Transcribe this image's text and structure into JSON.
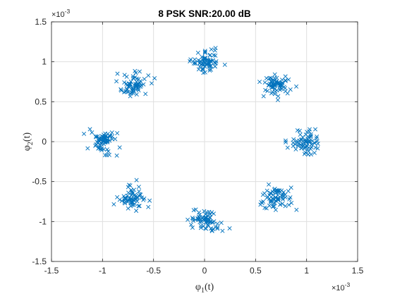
{
  "chart_data": {
    "type": "scatter",
    "title": "8 PSK  SNR:20.00 dB",
    "xlabel": {
      "base": "φ",
      "sub": "1",
      "tail": "(t)"
    },
    "ylabel": {
      "base": "φ",
      "sub": "2",
      "tail": "(t)"
    },
    "x_exponent": {
      "mult": "×10",
      "exp": "-3"
    },
    "y_exponent": {
      "mult": "×10",
      "exp": "-3"
    },
    "xlim": [
      -1.5,
      1.5
    ],
    "ylim": [
      -1.5,
      1.5
    ],
    "xticks": [
      -1.5,
      -1,
      -0.5,
      0,
      0.5,
      1,
      1.5
    ],
    "yticks": [
      -1.5,
      -1,
      -0.5,
      0,
      0.5,
      1,
      1.5
    ],
    "xtick_labels": [
      "-1.5",
      "-1",
      "-0.5",
      "0",
      "0.5",
      "1",
      "1.5"
    ],
    "ytick_labels": [
      "-1.5",
      "-1",
      "-0.5",
      "0",
      "0.5",
      "1",
      "1.5"
    ],
    "grid": true,
    "marker": "x",
    "color": "#0072BD",
    "series": [
      {
        "clusters": [
          {
            "center": [
              1.0,
              0.0
            ],
            "spread": 0.07,
            "count": 70
          },
          {
            "center": [
              0.707,
              0.707
            ],
            "spread": 0.07,
            "count": 70
          },
          {
            "center": [
              0.0,
              1.0
            ],
            "spread": 0.07,
            "count": 70
          },
          {
            "center": [
              -0.707,
              0.707
            ],
            "spread": 0.07,
            "count": 70
          },
          {
            "center": [
              -1.0,
              0.0
            ],
            "spread": 0.07,
            "count": 70
          },
          {
            "center": [
              -0.707,
              -0.707
            ],
            "spread": 0.07,
            "count": 70
          },
          {
            "center": [
              0.0,
              -1.0
            ],
            "spread": 0.07,
            "count": 70
          },
          {
            "center": [
              0.707,
              -0.707
            ],
            "spread": 0.07,
            "count": 70
          }
        ]
      }
    ]
  }
}
